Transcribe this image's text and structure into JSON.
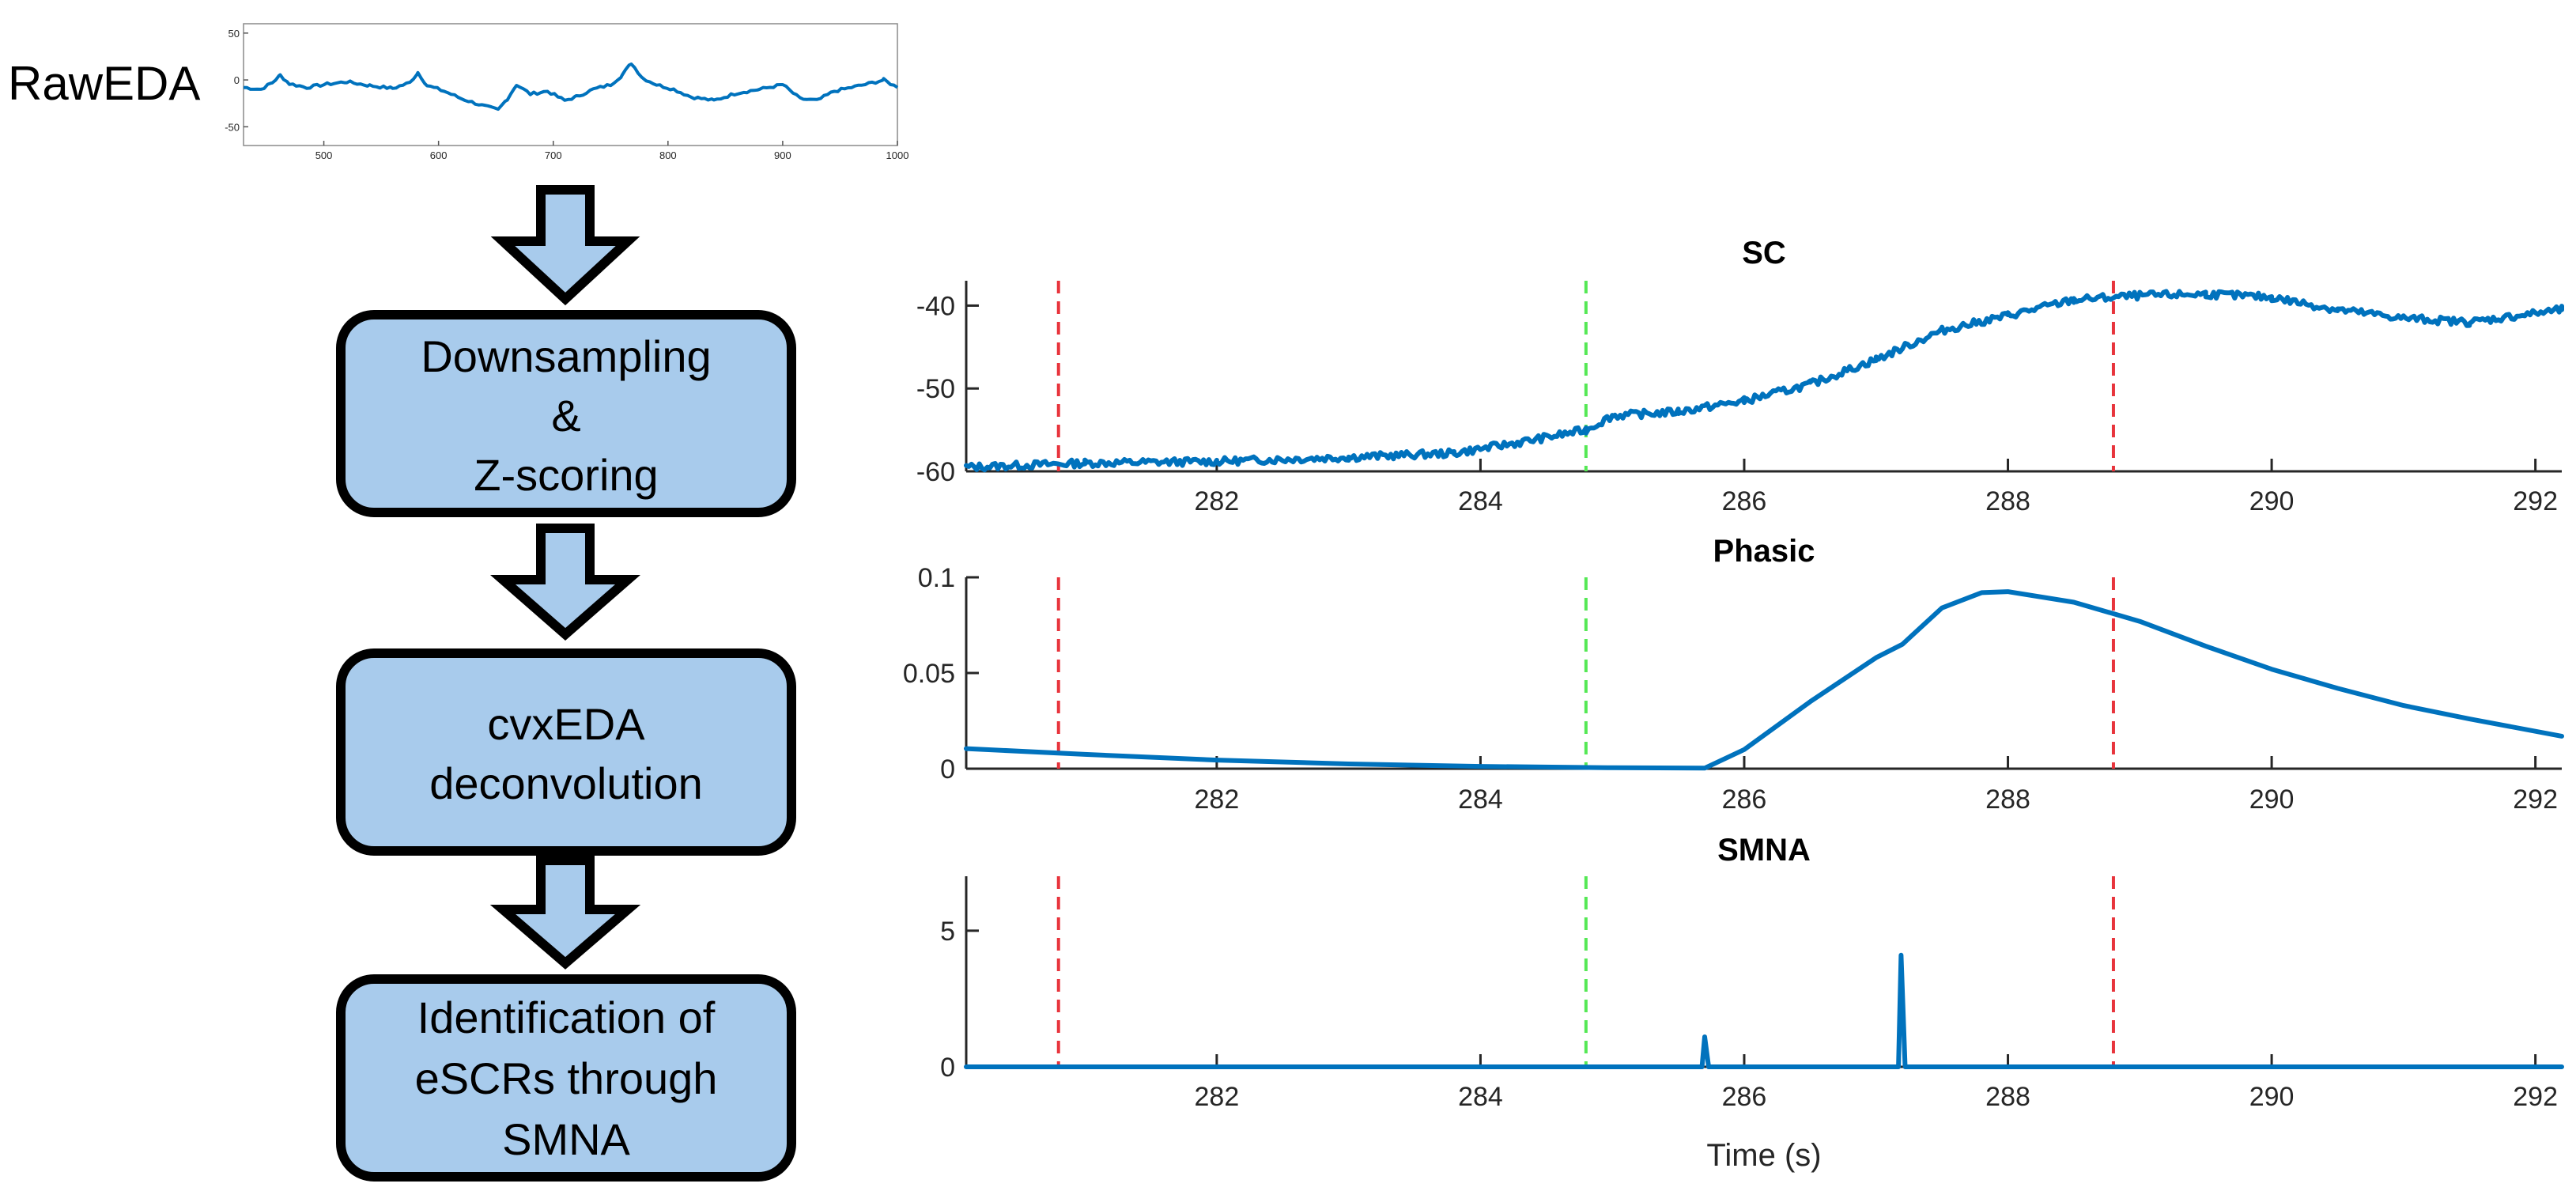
{
  "colors": {
    "box_fill": "#a8cbec",
    "box_stroke": "#000000",
    "arrow_fill": "#a8cbec",
    "trace": "#0072bd",
    "marker_red": "#e8343c",
    "marker_green": "#55e855"
  },
  "raw": {
    "label": "RawEDA",
    "xlim": [
      430,
      1000
    ],
    "ylim": [
      -70,
      60
    ],
    "xticks": [
      500,
      600,
      700,
      800,
      900,
      1000
    ],
    "yticks": [
      50,
      0,
      -50
    ],
    "ytick_labels": [
      "50",
      "0",
      "-50"
    ],
    "shape": [
      [
        430,
        -8
      ],
      [
        445,
        -10
      ],
      [
        455,
        -3
      ],
      [
        462,
        5
      ],
      [
        470,
        -4
      ],
      [
        485,
        -8
      ],
      [
        500,
        -5
      ],
      [
        520,
        -2
      ],
      [
        540,
        -6
      ],
      [
        560,
        -9
      ],
      [
        575,
        -3
      ],
      [
        582,
        8
      ],
      [
        590,
        -6
      ],
      [
        605,
        -12
      ],
      [
        620,
        -20
      ],
      [
        640,
        -28
      ],
      [
        652,
        -32
      ],
      [
        660,
        -20
      ],
      [
        668,
        -5
      ],
      [
        680,
        -15
      ],
      [
        695,
        -12
      ],
      [
        710,
        -22
      ],
      [
        720,
        -18
      ],
      [
        735,
        -10
      ],
      [
        750,
        -5
      ],
      [
        760,
        5
      ],
      [
        768,
        18
      ],
      [
        778,
        2
      ],
      [
        790,
        -5
      ],
      [
        805,
        -10
      ],
      [
        820,
        -18
      ],
      [
        840,
        -22
      ],
      [
        860,
        -14
      ],
      [
        880,
        -10
      ],
      [
        900,
        -5
      ],
      [
        915,
        -20
      ],
      [
        930,
        -22
      ],
      [
        945,
        -12
      ],
      [
        960,
        -8
      ],
      [
        975,
        -4
      ],
      [
        988,
        0
      ],
      [
        1000,
        -8
      ]
    ]
  },
  "flow": {
    "steps": [
      {
        "lines": [
          "Downsampling",
          "&",
          "Z-scoring"
        ]
      },
      {
        "lines": [
          "cvxEDA",
          "deconvolution"
        ]
      },
      {
        "lines": [
          "Identification of",
          "eSCRs through",
          "SMNA"
        ]
      }
    ]
  },
  "chart_data": [
    {
      "type": "line",
      "title": "SC",
      "xlim": [
        280.1,
        292.2
      ],
      "ylim": [
        -60,
        -37
      ],
      "xticks": [
        282,
        284,
        286,
        288,
        290,
        292
      ],
      "yticks": [
        -40,
        -50,
        -60
      ],
      "markers": {
        "red": [
          280.8,
          288.8
        ],
        "green": [
          284.8
        ]
      },
      "series": [
        {
          "name": "SC",
          "points": [
            [
              280.1,
              -59.5
            ],
            [
              281.0,
              -59.0
            ],
            [
              282.0,
              -58.8
            ],
            [
              283.0,
              -58.3
            ],
            [
              283.8,
              -57.8
            ],
            [
              284.3,
              -56.5
            ],
            [
              284.8,
              -55.0
            ],
            [
              285.0,
              -53.3
            ],
            [
              285.5,
              -52.8
            ],
            [
              286.0,
              -51.5
            ],
            [
              286.5,
              -49.5
            ],
            [
              287.0,
              -46.5
            ],
            [
              287.5,
              -43.0
            ],
            [
              288.0,
              -41.2
            ],
            [
              288.5,
              -39.3
            ],
            [
              289.0,
              -38.8
            ],
            [
              289.5,
              -38.6
            ],
            [
              290.0,
              -39.0
            ],
            [
              290.5,
              -40.5
            ],
            [
              291.0,
              -41.5
            ],
            [
              291.5,
              -42.0
            ],
            [
              292.2,
              -40.5
            ]
          ]
        }
      ]
    },
    {
      "type": "line",
      "title": "Phasic",
      "xlim": [
        280.1,
        292.2
      ],
      "ylim": [
        0,
        0.1
      ],
      "xticks": [
        282,
        284,
        286,
        288,
        290,
        292
      ],
      "yticks": [
        0.1,
        0.05,
        0
      ],
      "ytick_labels": [
        "0.1",
        "0.05",
        "0"
      ],
      "markers": {
        "red": [
          280.8,
          288.8
        ],
        "green": [
          284.8
        ]
      },
      "series": [
        {
          "name": "Phasic",
          "points": [
            [
              280.1,
              0.0105
            ],
            [
              281.0,
              0.0075
            ],
            [
              282.0,
              0.0045
            ],
            [
              283.0,
              0.0025
            ],
            [
              284.0,
              0.0012
            ],
            [
              285.0,
              0.0005
            ],
            [
              285.7,
              0.0003
            ],
            [
              286.0,
              0.01
            ],
            [
              286.5,
              0.035
            ],
            [
              287.0,
              0.058
            ],
            [
              287.2,
              0.065
            ],
            [
              287.5,
              0.084
            ],
            [
              287.8,
              0.092
            ],
            [
              288.0,
              0.0925
            ],
            [
              288.5,
              0.087
            ],
            [
              289.0,
              0.077
            ],
            [
              289.5,
              0.064
            ],
            [
              290.0,
              0.052
            ],
            [
              290.5,
              0.042
            ],
            [
              291.0,
              0.033
            ],
            [
              291.5,
              0.026
            ],
            [
              292.2,
              0.017
            ]
          ]
        }
      ]
    },
    {
      "type": "line",
      "title": "SMNA",
      "xlim": [
        280.1,
        292.2
      ],
      "ylim": [
        0,
        7
      ],
      "xticks": [
        282,
        284,
        286,
        288,
        290,
        292
      ],
      "yticks": [
        5,
        0
      ],
      "xlabel": "Time (s)",
      "markers": {
        "red": [
          280.8,
          288.8
        ],
        "green": [
          284.8
        ]
      },
      "series": [
        {
          "name": "SMNA",
          "points": [
            [
              280.1,
              0
            ],
            [
              285.68,
              0
            ],
            [
              285.7,
              1.1
            ],
            [
              285.73,
              0
            ],
            [
              287.17,
              0
            ],
            [
              287.19,
              4.1
            ],
            [
              287.22,
              0
            ],
            [
              292.2,
              0
            ]
          ]
        }
      ]
    }
  ]
}
